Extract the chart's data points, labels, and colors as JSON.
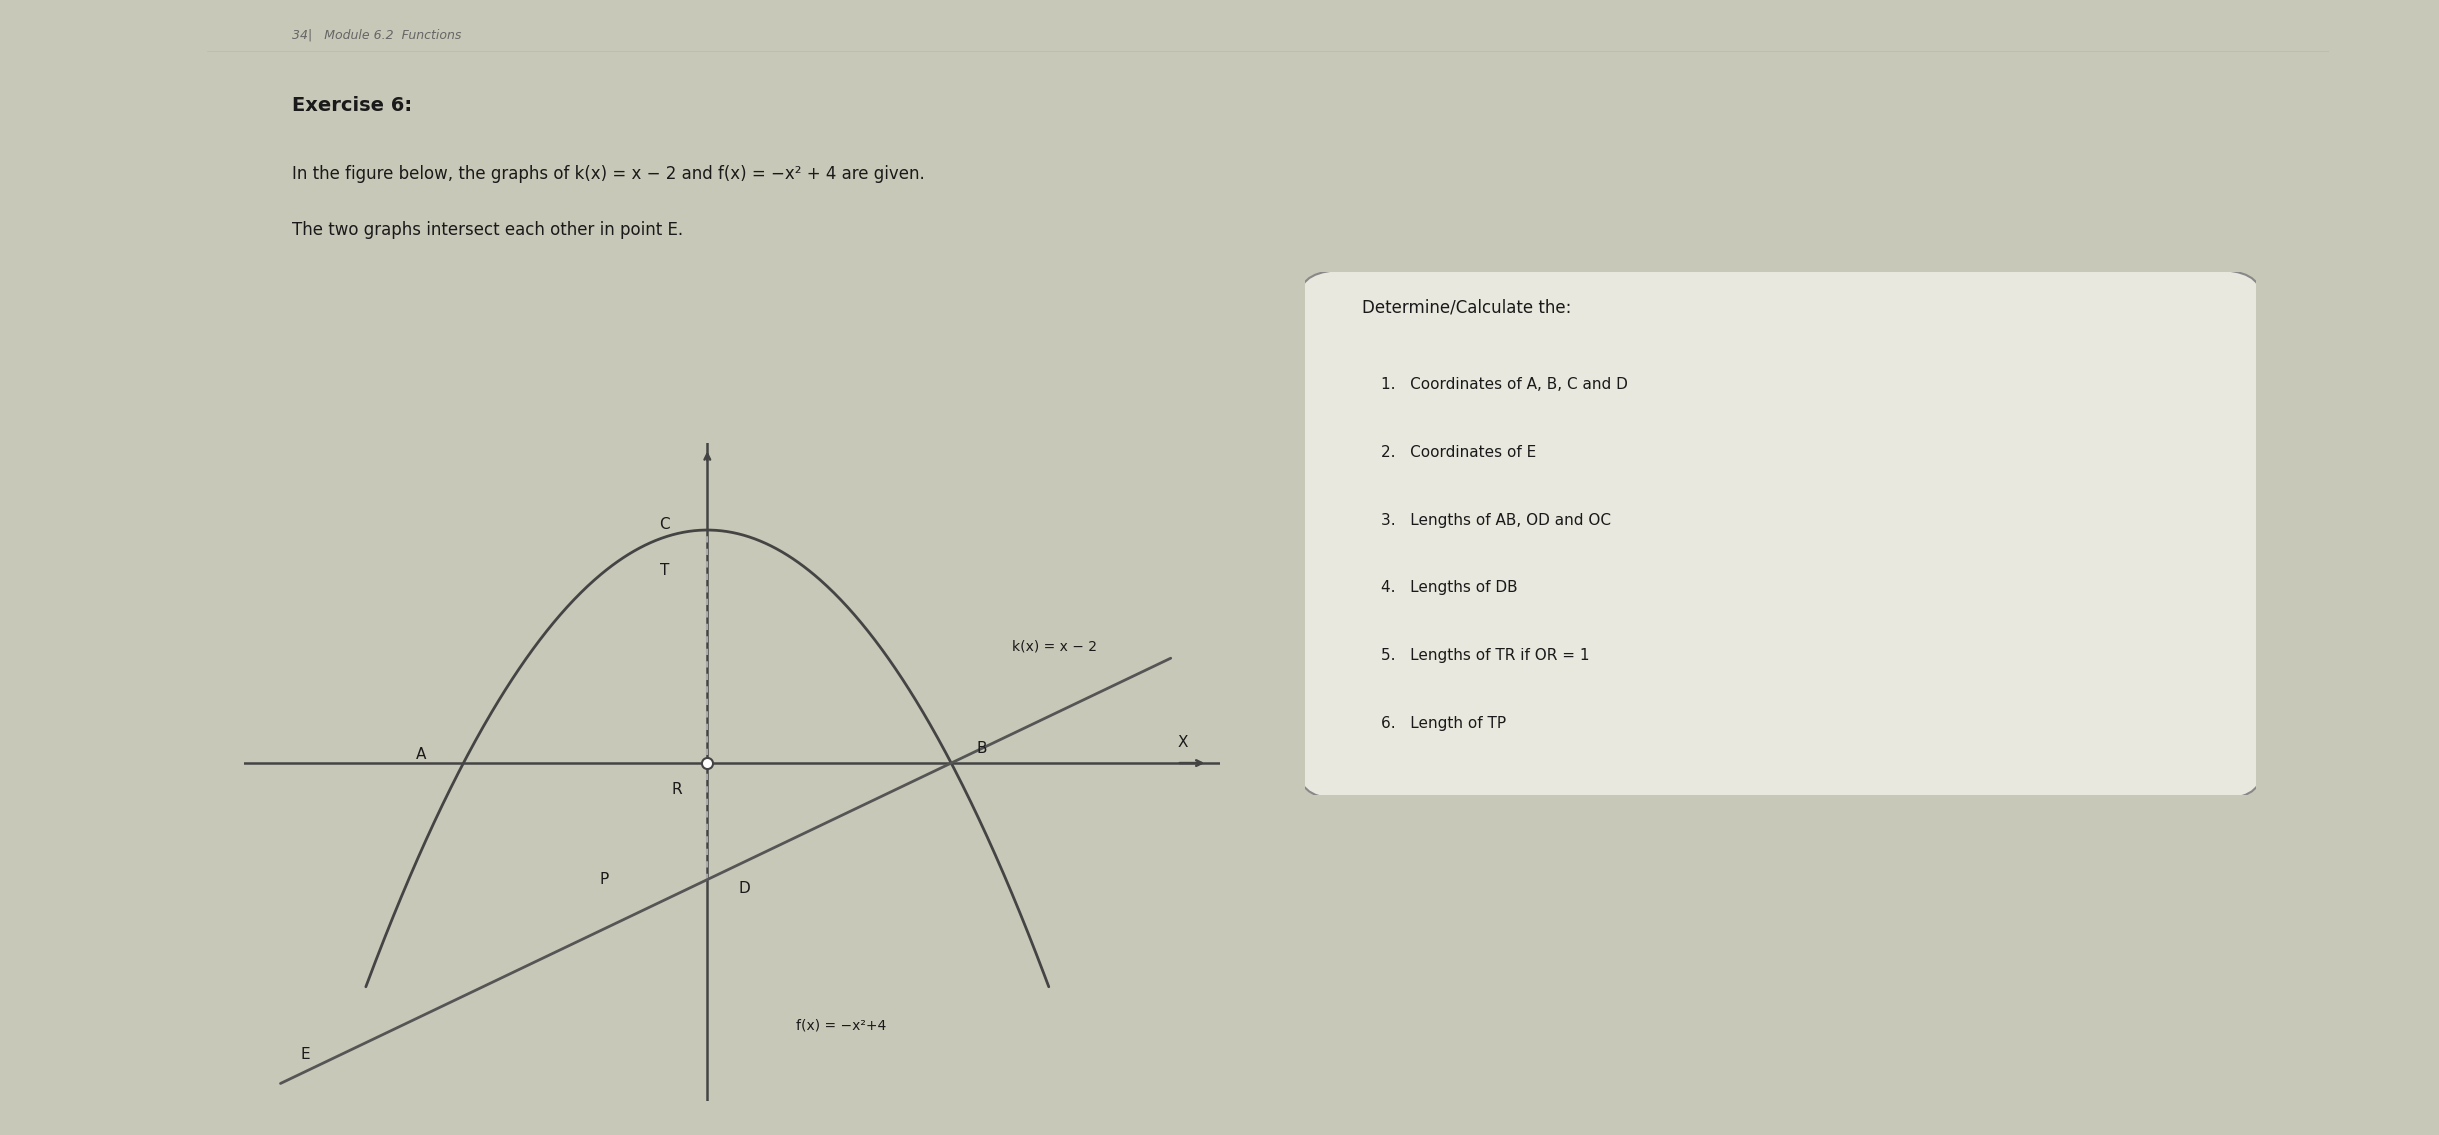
{
  "page_title": "34|   Module 6.2  Functions",
  "exercise_label": "Exercise 6:",
  "intro_line1": "In the figure below, the graphs of k(x) = x − 2 and f(x) = −x² + 4 are given.",
  "intro_line2": "The two graphs intersect each other in point E.",
  "k_label": "k(x) = x − 2",
  "f_label": "f(x) = −x²+4",
  "box_title": "Determine/Calculate the:",
  "box_items": [
    "1.   Coordinates of A, B, C and D",
    "2.   Coordinates of E",
    "3.   Lengths of AB, OD and OC",
    "4.   Lengths of DB",
    "5.   Lengths of TR if OR = 1",
    "6.   Length of TP"
  ],
  "bg_left_color": "#3a3028",
  "bg_right_color": "#c8c8b8",
  "paper_color": "#deded4",
  "axis_color": "#444444",
  "curve_color": "#444444",
  "line_color": "#555555",
  "text_color": "#1a1a1a",
  "title_color": "#666666",
  "box_bg": "#e8e8de",
  "box_edge": "#888888",
  "dashed_color": "#aaaaaa"
}
